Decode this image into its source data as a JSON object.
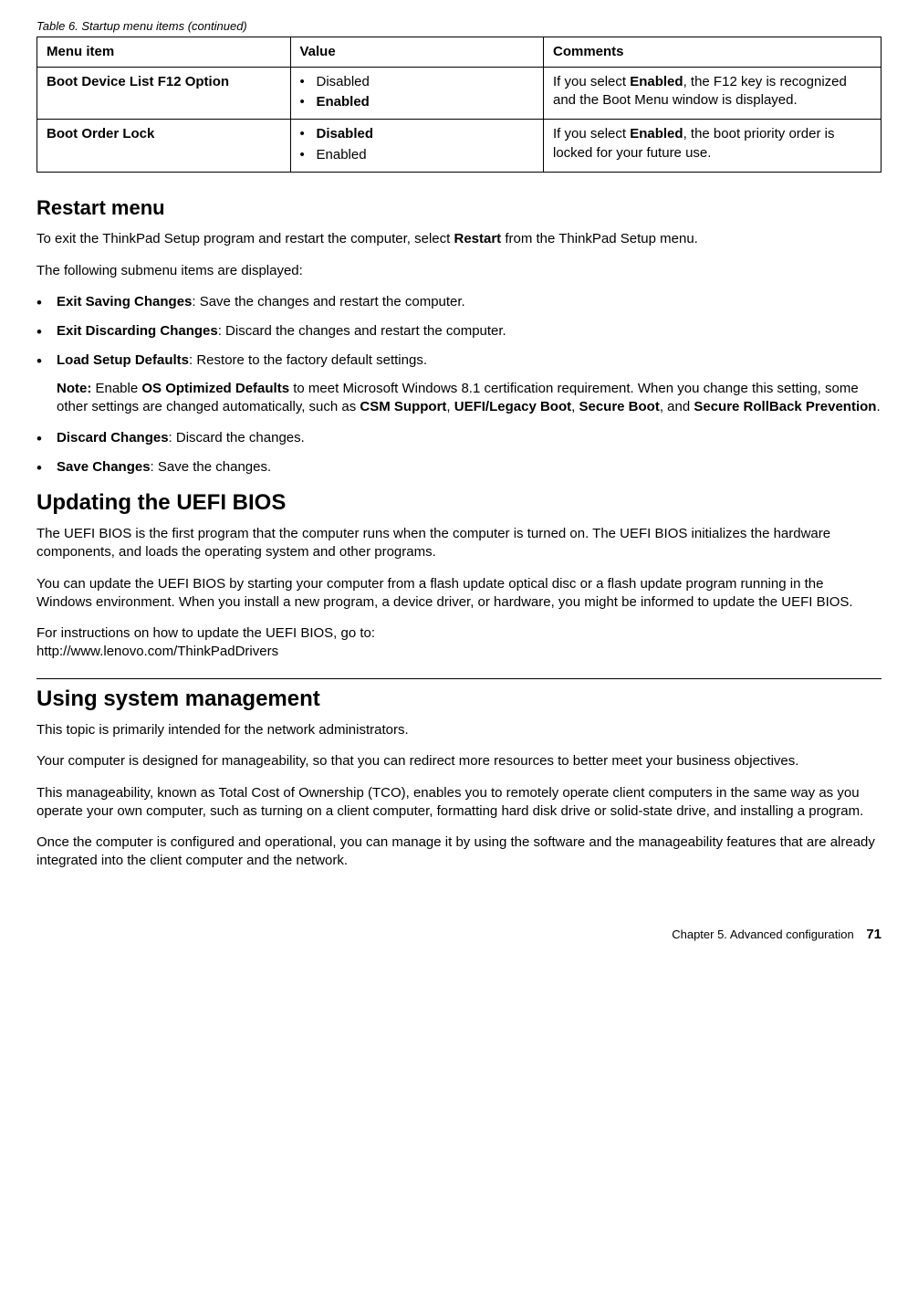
{
  "table": {
    "caption": "Table 6.  Startup menu items (continued)",
    "headers": [
      "Menu item",
      "Value",
      "Comments"
    ],
    "rows": [
      {
        "menu_item": "Boot Device List F12 Option",
        "values": [
          {
            "label": "Disabled",
            "bold": false
          },
          {
            "label": "Enabled",
            "bold": true
          }
        ],
        "comment_pre": "If you select ",
        "comment_bold": "Enabled",
        "comment_post": ", the F12 key is recognized and the Boot Menu window is displayed."
      },
      {
        "menu_item": "Boot Order Lock",
        "values": [
          {
            "label": "Disabled",
            "bold": true
          },
          {
            "label": "Enabled",
            "bold": false
          }
        ],
        "comment_pre": "If you select ",
        "comment_bold": "Enabled",
        "comment_post": ", the boot priority order is locked for your future use."
      }
    ]
  },
  "restart": {
    "heading": "Restart menu",
    "intro_pre": "To exit the ThinkPad Setup program and restart the computer, select ",
    "intro_bold": "Restart",
    "intro_post": " from the ThinkPad Setup menu.",
    "subintro": "The following submenu items are displayed:",
    "items": {
      "i0": {
        "label": "Exit Saving Changes",
        "desc": ": Save the changes and restart the computer."
      },
      "i1": {
        "label": "Exit Discarding Changes",
        "desc": ": Discard the changes and restart the computer."
      },
      "i2": {
        "label": "Load Setup Defaults",
        "desc": ": Restore to the factory default settings.",
        "note_label": "Note:",
        "note_p1": " Enable ",
        "note_b1": "OS Optimized Defaults",
        "note_p2": " to meet Microsoft Windows 8.1 certification requirement.  When you change this setting, some other settings are changed automatically, such as ",
        "note_b2": "CSM Support",
        "note_p3": ", ",
        "note_b3": "UEFI/Legacy Boot",
        "note_p4": ", ",
        "note_b4": "Secure Boot",
        "note_p5": ", and ",
        "note_b5": "Secure RollBack Prevention",
        "note_p6": "."
      },
      "i3": {
        "label": "Discard Changes",
        "desc": ": Discard the changes."
      },
      "i4": {
        "label": "Save Changes",
        "desc": ": Save the changes."
      }
    }
  },
  "uefi": {
    "heading": "Updating the UEFI BIOS",
    "p1": "The UEFI BIOS is the first program that the computer runs when the computer is turned on.  The UEFI BIOS initializes the hardware components, and loads the operating system and other programs.",
    "p2": "You can update the UEFI BIOS by starting your computer from a flash update optical disc or a flash update program running in the Windows environment.  When you install a new program, a device driver, or hardware, you might be informed to update the UEFI BIOS.",
    "p3a": "For instructions on how to update the UEFI BIOS, go to:",
    "p3b": "http://www.lenovo.com/ThinkPadDrivers"
  },
  "sysmgmt": {
    "heading": "Using system management",
    "p1": "This topic is primarily intended for the network administrators.",
    "p2": "Your computer is designed for manageability, so that you can redirect more resources to better meet your business objectives.",
    "p3": "This manageability, known as Total Cost of Ownership (TCO), enables you to remotely operate client computers in the same way as you operate your own computer, such as turning on a client computer, formatting hard disk drive or solid-state drive, and installing a program.",
    "p4": "Once the computer is configured and operational, you can manage it by using the software and the manageability features that are already integrated into the client computer and the network."
  },
  "footer": {
    "chapter": "Chapter  5.   Advanced  configuration",
    "page": "71"
  }
}
